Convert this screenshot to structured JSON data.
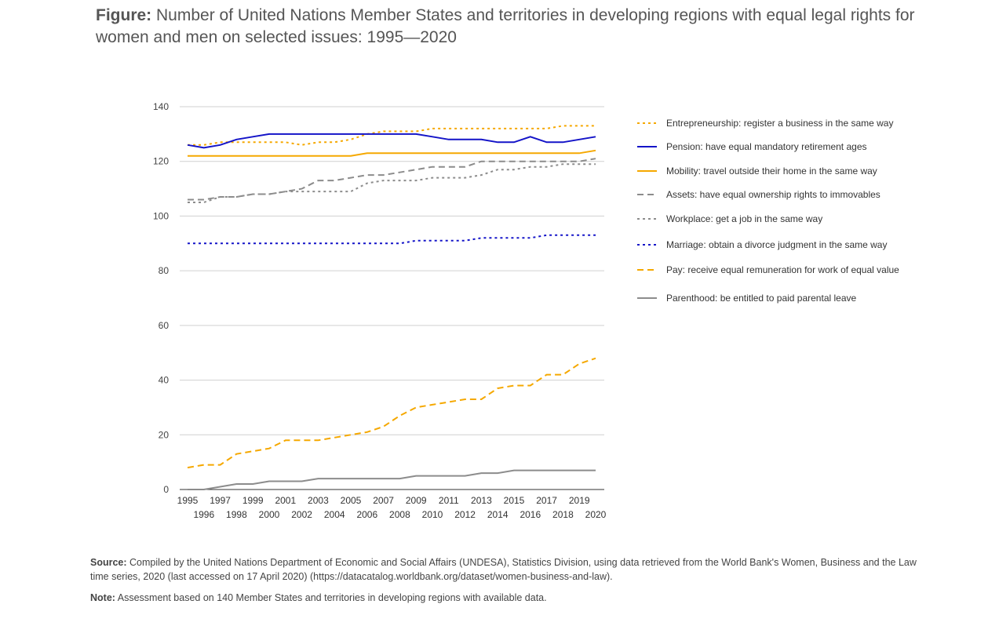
{
  "title": {
    "prefix": "Figure:",
    "text": "Number of United Nations Member States and territories in developing regions with equal legal rights for women and men on selected issues: 1995—2020"
  },
  "source": {
    "label": "Source:",
    "text": "Compiled by the United Nations Department of Economic and Social Affairs (UNDESA), Statistics Division, using data retrieved from the World Bank's Women, Business and the Law time series, 2020 (last accessed on 17 April 2020) (https://datacatalog.worldbank.org/dataset/women-business-and-law)."
  },
  "note": {
    "label": "Note:",
    "text": "Assessment based on 140 Member States and territories in developing regions with available data."
  },
  "chart_data": {
    "type": "line",
    "x": [
      1995,
      1996,
      1997,
      1998,
      1999,
      2000,
      2001,
      2002,
      2003,
      2004,
      2005,
      2006,
      2007,
      2008,
      2009,
      2010,
      2011,
      2012,
      2013,
      2014,
      2015,
      2016,
      2017,
      2018,
      2019,
      2020
    ],
    "x_tick_labels_top": [
      "1995",
      "1997",
      "1999",
      "2001",
      "2003",
      "2005",
      "2007",
      "2009",
      "2011",
      "2013",
      "2015",
      "2017",
      "2019"
    ],
    "x_tick_labels_bottom": [
      "1996",
      "1998",
      "2000",
      "2002",
      "2004",
      "2006",
      "2008",
      "2010",
      "2012",
      "2014",
      "2016",
      "2018",
      "2020"
    ],
    "ylim": [
      0,
      140
    ],
    "yticks": [
      0,
      20,
      40,
      60,
      80,
      100,
      120,
      140
    ],
    "grid": true,
    "legend_position": "right",
    "series": [
      {
        "name": "Entrepreneurship: register a business in the same way",
        "color": "#F5A800",
        "dash": "3,4",
        "values": [
          126,
          126,
          127,
          127,
          127,
          127,
          127,
          126,
          127,
          127,
          128,
          130,
          131,
          131,
          131,
          132,
          132,
          132,
          132,
          132,
          132,
          132,
          132,
          133,
          133,
          133
        ]
      },
      {
        "name": "Pension: have equal mandatory retirement ages",
        "color": "#1414C8",
        "dash": "",
        "values": [
          126,
          125,
          126,
          128,
          129,
          130,
          130,
          130,
          130,
          130,
          130,
          130,
          130,
          130,
          130,
          129,
          128,
          128,
          128,
          127,
          127,
          129,
          127,
          127,
          128,
          129
        ]
      },
      {
        "name": "Mobility: travel outside their home in the same way",
        "color": "#F5A800",
        "dash": "",
        "values": [
          122,
          122,
          122,
          122,
          122,
          122,
          122,
          122,
          122,
          122,
          122,
          123,
          123,
          123,
          123,
          123,
          123,
          123,
          123,
          123,
          123,
          123,
          123,
          123,
          123,
          124
        ]
      },
      {
        "name": "Assets: have equal ownership rights to immovables",
        "color": "#8C8C8C",
        "dash": "8,5",
        "values": [
          106,
          106,
          107,
          107,
          108,
          108,
          109,
          110,
          113,
          113,
          114,
          115,
          115,
          116,
          117,
          118,
          118,
          118,
          120,
          120,
          120,
          120,
          120,
          120,
          120,
          121
        ]
      },
      {
        "name": "Workplace: get a job in the same way",
        "color": "#8C8C8C",
        "dash": "3,4",
        "values": [
          105,
          105,
          107,
          107,
          108,
          108,
          109,
          109,
          109,
          109,
          109,
          112,
          113,
          113,
          113,
          114,
          114,
          114,
          115,
          117,
          117,
          118,
          118,
          119,
          119,
          119
        ]
      },
      {
        "name": "Marriage: obtain a divorce judgment in the same way",
        "color": "#1414C8",
        "dash": "3,4",
        "values": [
          90,
          90,
          90,
          90,
          90,
          90,
          90,
          90,
          90,
          90,
          90,
          90,
          90,
          90,
          91,
          91,
          91,
          91,
          92,
          92,
          92,
          92,
          93,
          93,
          93,
          93
        ]
      },
      {
        "name": "Pay: receive equal remuneration for work of equal value",
        "color": "#F5A800",
        "dash": "8,5",
        "values": [
          8,
          9,
          9,
          13,
          14,
          15,
          18,
          18,
          18,
          19,
          20,
          21,
          23,
          27,
          30,
          31,
          32,
          33,
          33,
          37,
          38,
          38,
          42,
          42,
          46,
          48
        ]
      },
      {
        "name": "Parenthood: be entitled to paid parental leave",
        "color": "#8C8C8C",
        "dash": "",
        "values": [
          0,
          0,
          1,
          2,
          2,
          3,
          3,
          3,
          4,
          4,
          4,
          4,
          4,
          4,
          5,
          5,
          5,
          5,
          6,
          6,
          7,
          7,
          7,
          7,
          7,
          7
        ]
      }
    ]
  }
}
